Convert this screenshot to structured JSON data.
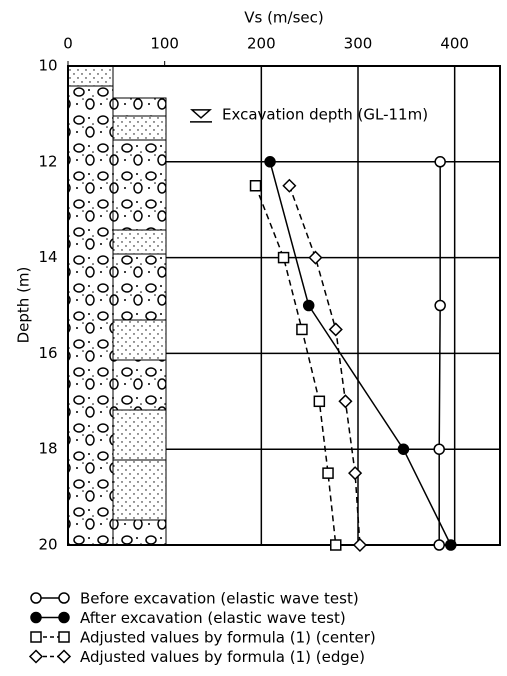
{
  "chart_data": {
    "type": "line",
    "title": "Vs (m/sec)",
    "y_label": "Depth (m)",
    "annotation": "Excavation depth (GL-11m)",
    "xlim": [
      0,
      450
    ],
    "xticks": [
      0,
      100,
      200,
      300,
      400
    ],
    "ylim": [
      10,
      20
    ],
    "yticks": [
      10,
      12,
      14,
      16,
      18,
      20
    ],
    "annotation_depth": 11,
    "grid": true,
    "series": [
      {
        "name": "Before excavation (elastic wave test)",
        "marker": "circle-open",
        "dash": false,
        "color": "#000000",
        "depths": [
          12,
          15,
          18,
          20
        ],
        "values": [
          385,
          385,
          384,
          384
        ]
      },
      {
        "name": "After excavation (elastic wave test)",
        "marker": "circle-filled",
        "dash": false,
        "color": "#000000",
        "depths": [
          12,
          15,
          18,
          20
        ],
        "values": [
          209,
          249,
          347,
          396
        ]
      },
      {
        "name": "Adjusted values by formula (1) (center)",
        "marker": "square-open",
        "dash": true,
        "color": "#000000",
        "depths": [
          12.5,
          14,
          15.5,
          17,
          18.5,
          20
        ],
        "values": [
          194,
          223,
          242,
          260,
          269,
          277
        ]
      },
      {
        "name": "Adjusted values by formula (1) (edge)",
        "marker": "diamond-open",
        "dash": true,
        "color": "#000000",
        "depths": [
          12.5,
          14,
          15.5,
          17,
          18.5,
          20
        ],
        "values": [
          229,
          256,
          277,
          287,
          297,
          302
        ]
      }
    ]
  }
}
